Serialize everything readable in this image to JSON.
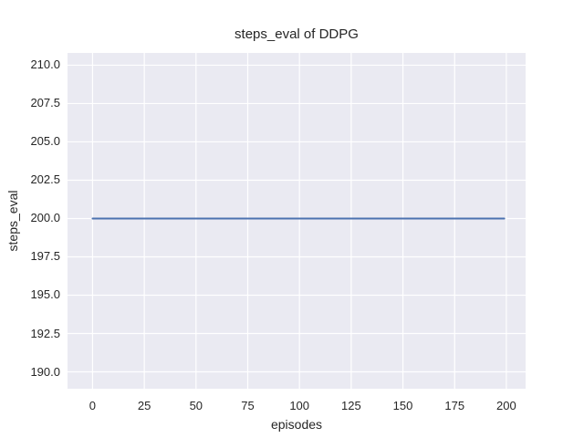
{
  "figure": {
    "background_color": "#ffffff",
    "text_color": "#262626"
  },
  "chart_data": {
    "type": "line",
    "title": "steps_eval of DDPG",
    "xlabel": "episodes",
    "ylabel": "steps_eval",
    "style": "seaborn-darkgrid",
    "plot_background_color": "#eaeaf2",
    "grid_color": "#ffffff",
    "grid": true,
    "legend": false,
    "xlim": [
      -12.1,
      209.3
    ],
    "ylim": [
      188.9,
      210.8
    ],
    "x_ticks": [
      0,
      25,
      50,
      75,
      100,
      125,
      150,
      175,
      200
    ],
    "x_tick_labels": [
      "0",
      "25",
      "50",
      "75",
      "100",
      "125",
      "150",
      "175",
      "200"
    ],
    "y_ticks": [
      190.0,
      192.5,
      195.0,
      197.5,
      200.0,
      202.5,
      205.0,
      207.5,
      210.0
    ],
    "y_tick_labels": [
      "190.0",
      "192.5",
      "195.0",
      "197.5",
      "200.0",
      "202.5",
      "205.0",
      "207.5",
      "210.0"
    ],
    "series": [
      {
        "name": "steps_eval",
        "color": "#4c72b0",
        "line_width": 2,
        "x": [
          0,
          199
        ],
        "y": [
          200,
          200
        ]
      }
    ]
  }
}
